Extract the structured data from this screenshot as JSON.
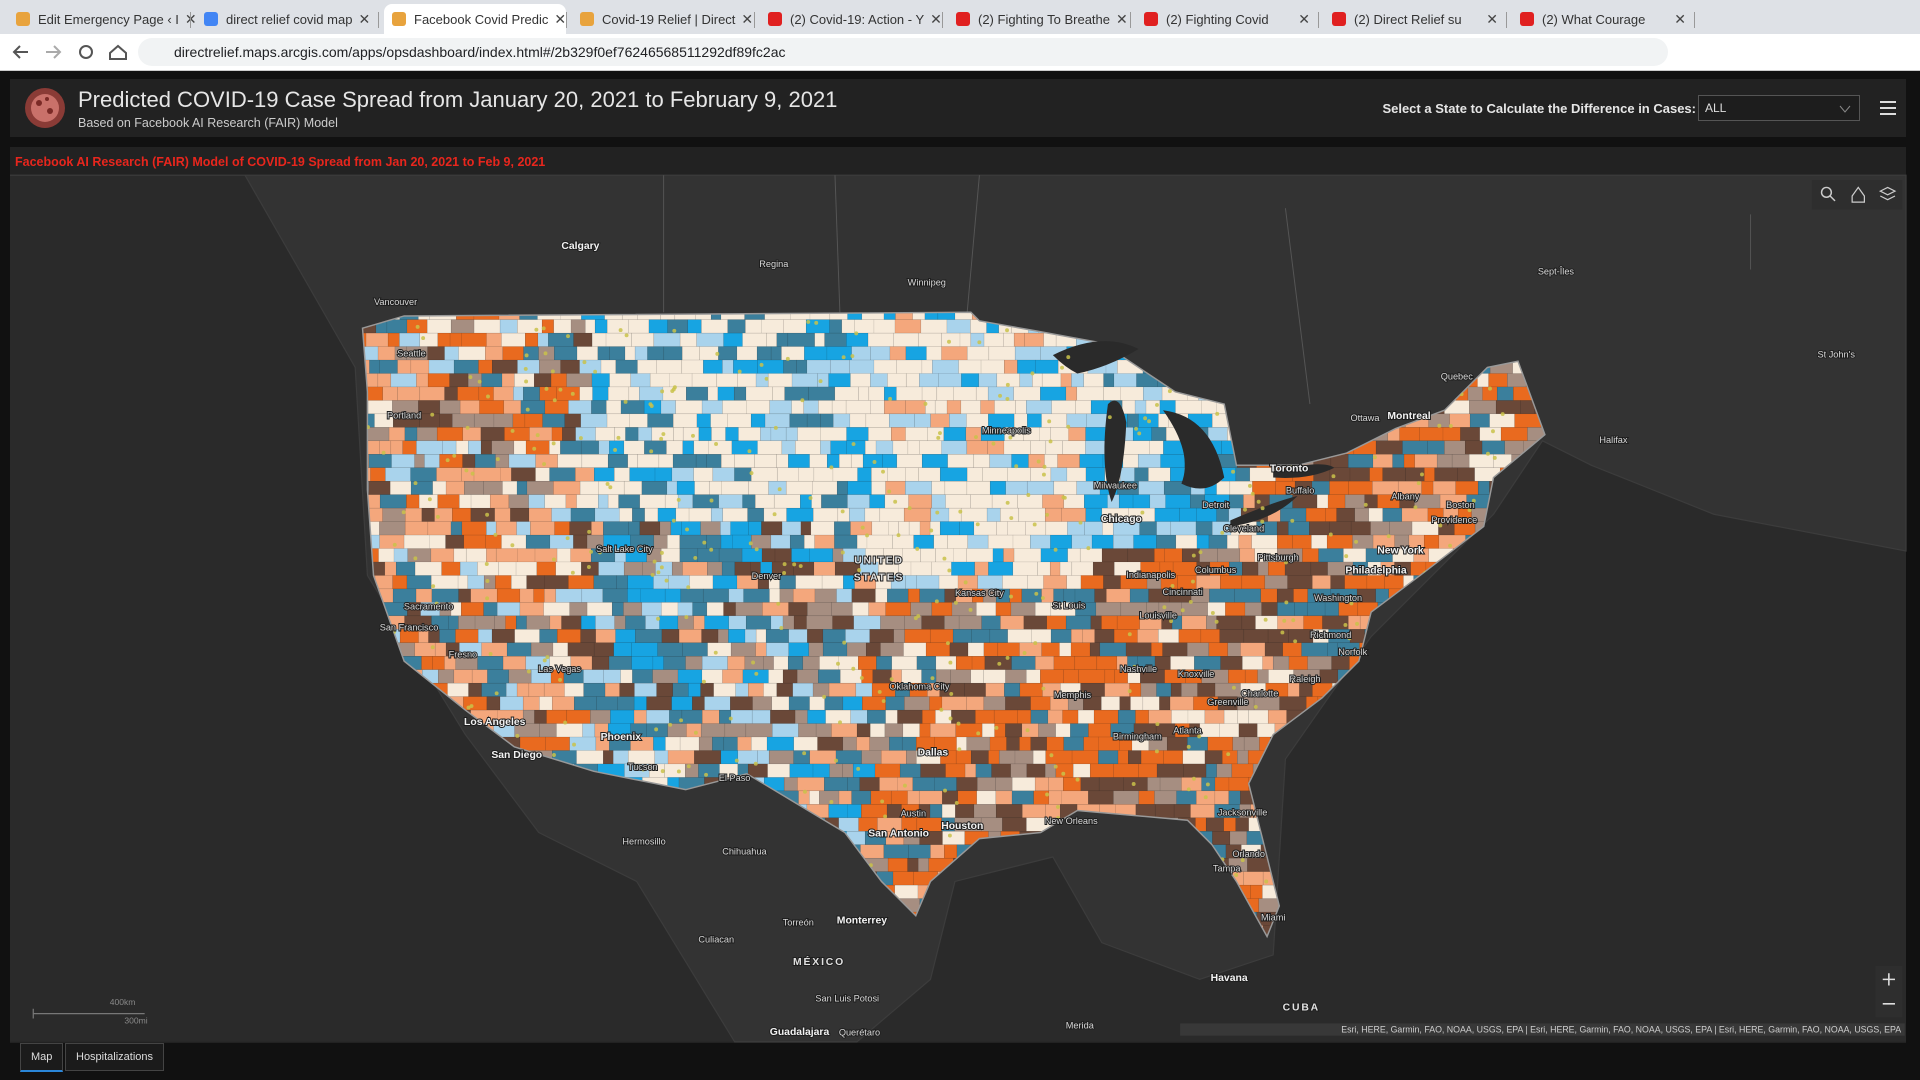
{
  "browser": {
    "tabs": [
      "Edit Emergency Page ‹ I",
      "direct relief covid map",
      "Facebook Covid Predic",
      "Covid-19 Relief | Direct",
      "(2) Covid-19: Action - Y",
      "(2) Fighting To Breathe",
      "(2) Fighting Covid",
      "(2) Direct Relief su",
      "(2) What Courage"
    ],
    "url": "directrelief.maps.arcgis.com/apps/opsdashboard/index.html#/2b329f0ef76246568511292df89fc2ac"
  },
  "dashboard": {
    "title": "Predicted COVID-19 Case Spread from January 20, 2021 to February 9, 2021",
    "subtitle": "Based on Facebook AI Research (FAIR) Model",
    "selector_label": "Select a State to Calculate the Difference in Cases:",
    "selector_value": "ALL",
    "panel_title": "Facebook AI Research (FAIR) Model of COVID-19 Spread from Jan 20, 2021 to Feb 9, 2021",
    "map_labels": [
      "Calgary",
      "Regina",
      "Winnipeg",
      "Vancouver",
      "Sept-Îles",
      "St John's",
      "Quebec",
      "Montreal",
      "Ottawa",
      "Halifax",
      "Toronto",
      "Buffalo",
      "Albany",
      "Boston",
      "Providence",
      "Seattle",
      "Portland",
      "Minneapolis",
      "Milwaukee",
      "Detroit",
      "Chicago",
      "Cleveland",
      "Pittsburgh",
      "New York",
      "Philadelphia",
      "Washington",
      "Salt Lake City",
      "Denver",
      "UNITED",
      "STATES",
      "Indianapolis",
      "Columbus",
      "Cincinnati",
      "Kansas City",
      "St Louis",
      "Louisville",
      "Sacramento",
      "San Francisco",
      "Richmond",
      "Norfolk",
      "Fresno",
      "Las Vegas",
      "Nashville",
      "Knoxville",
      "Raleigh",
      "Oklahoma City",
      "Memphis",
      "Charlotte",
      "Greenville",
      "Los Angeles",
      "Atlanta",
      "Birmingham",
      "Phoenix",
      "Dallas",
      "San Diego",
      "Tucson",
      "El Paso",
      "Jacksonville",
      "Austin",
      "New Orleans",
      "Houston",
      "San Antonio",
      "Hermosillo",
      "Chihuahua",
      "Orlando",
      "Tampa",
      "Miami",
      "Torreón",
      "Monterrey",
      "Culiacan",
      "MÉXICO",
      "Havana",
      "San Luis Potosi",
      "CUBA",
      "Merida",
      "Guadalajara",
      "Querétaro"
    ],
    "scale_labels": [
      "400km",
      "300mi"
    ],
    "attribution": "Esri, HERE, Garmin, FAO, NOAA, USGS, EPA | Esri, HERE, Garmin, FAO, NOAA, USGS, EPA | Esri, HERE, Garmin, FAO, NOAA, USGS, EPA",
    "bottom_tabs": [
      "Map",
      "Hospitalizations"
    ]
  }
}
